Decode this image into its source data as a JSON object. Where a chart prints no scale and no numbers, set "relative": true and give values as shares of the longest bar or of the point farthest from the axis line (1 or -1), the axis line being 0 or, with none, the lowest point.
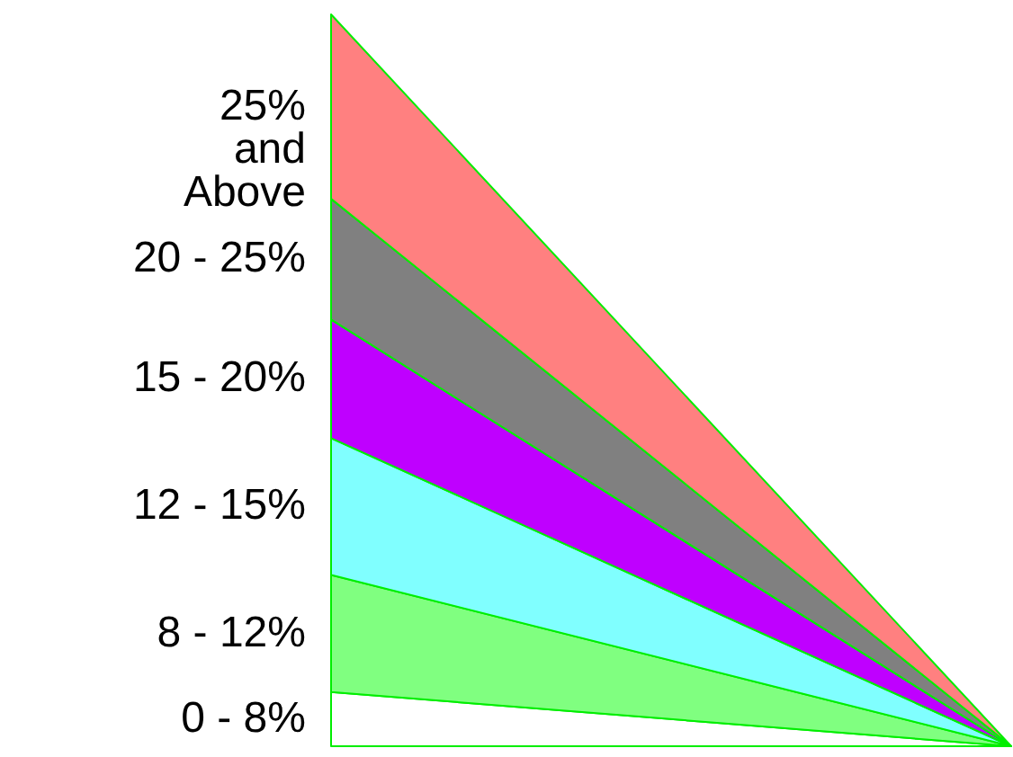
{
  "chart_data": {
    "type": "area",
    "relative": true,
    "stacked": true,
    "categories": [
      null,
      null
    ],
    "series": [
      {
        "name": "0 - 8%",
        "color": "#ffffff",
        "values": [
          0.074,
          0
        ]
      },
      {
        "name": "8 - 12%",
        "color": "#80ff80",
        "values": [
          0.16,
          0
        ]
      },
      {
        "name": "12 - 15%",
        "color": "#80ffff",
        "values": [
          0.187,
          0
        ]
      },
      {
        "name": "15 - 20%",
        "color": "#bf00ff",
        "values": [
          0.162,
          0
        ]
      },
      {
        "name": "20 - 25%",
        "color": "#808080",
        "values": [
          0.165,
          0
        ]
      },
      {
        "name": "25%\nand\nAbove",
        "color": "#ff8080",
        "values": [
          0.252,
          0
        ]
      }
    ]
  }
}
